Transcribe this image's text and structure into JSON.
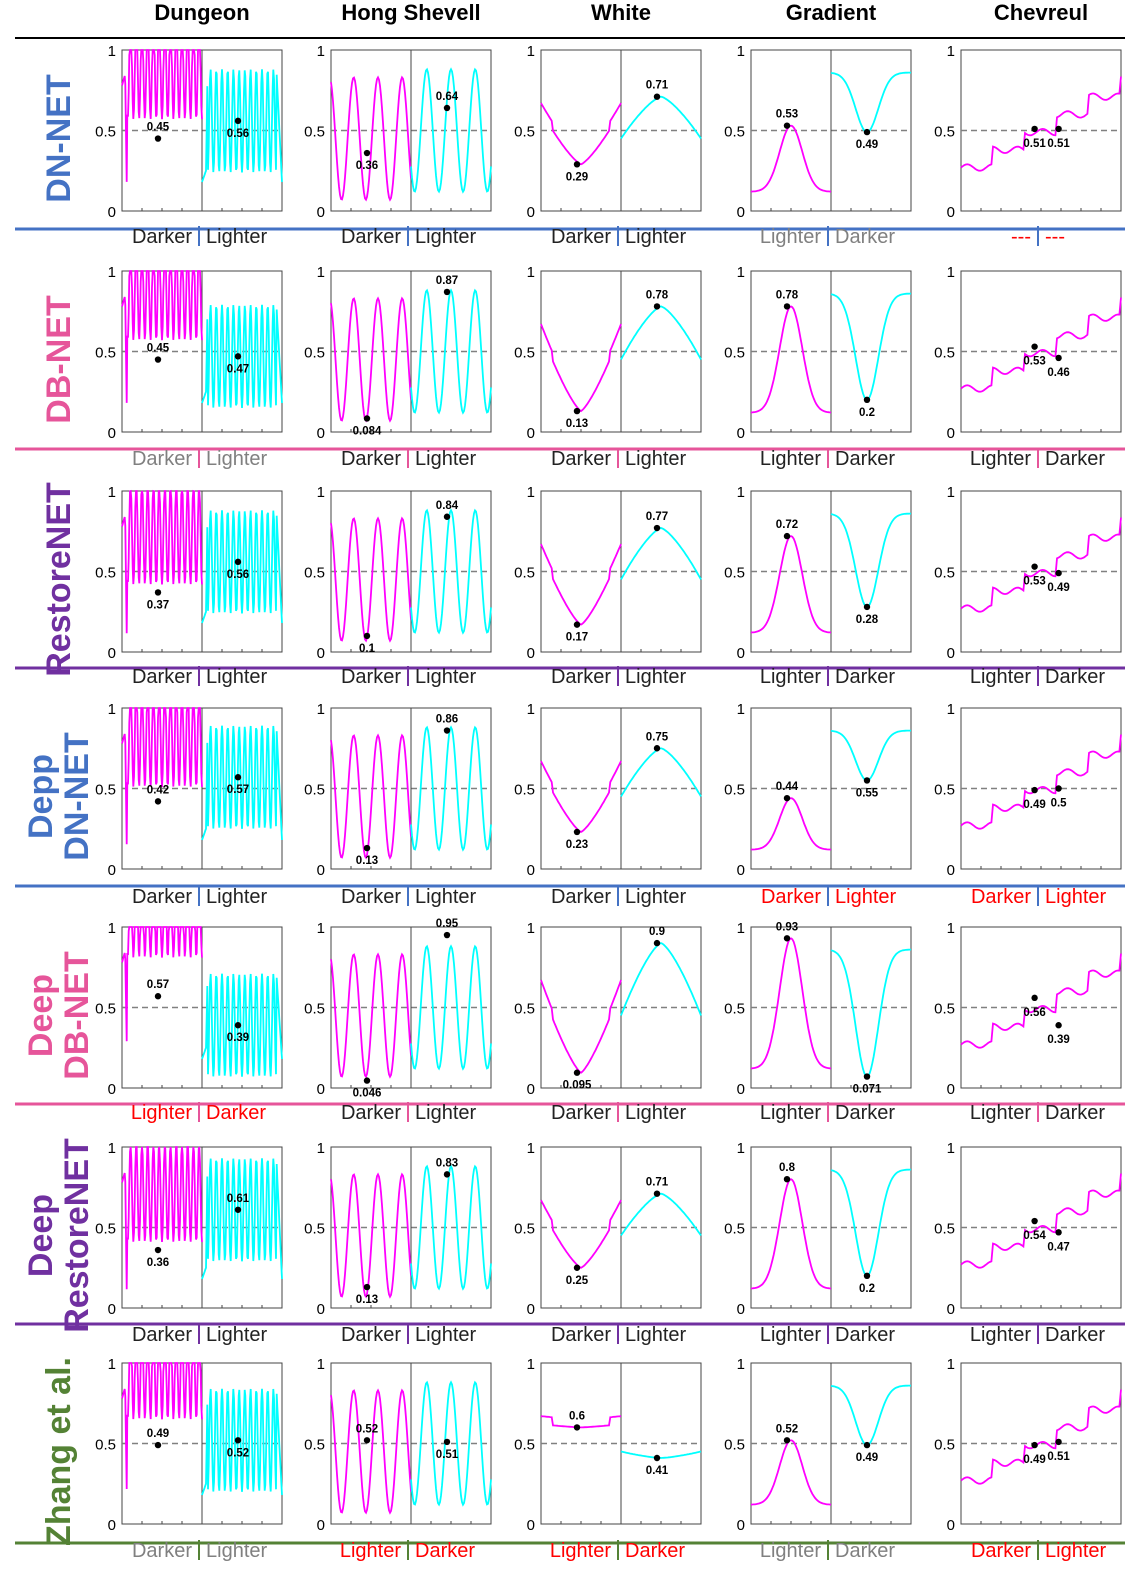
{
  "columns": [
    "Dungeon",
    "Hong Shevell",
    "White",
    "Gradient",
    "Chevreul"
  ],
  "rows": [
    {
      "label_lines": [
        "DN-NET"
      ],
      "color": "#4472c4"
    },
    {
      "label_lines": [
        "DB-NET"
      ],
      "color": "#e6559a"
    },
    {
      "label_lines": [
        "RestoreNET"
      ],
      "color": "#7030a0"
    },
    {
      "label_lines": [
        "Depp",
        "DN-NET"
      ],
      "color": "#4472c4"
    },
    {
      "label_lines": [
        "Deep",
        "DB-NET"
      ],
      "color": "#e6559a"
    },
    {
      "label_lines": [
        "Deep",
        "RestoreNET"
      ],
      "color": "#7030a0"
    },
    {
      "label_lines": [
        "Zhang et al."
      ],
      "color": "#548235"
    }
  ],
  "colors": {
    "magenta": "#ff00ff",
    "cyan": "#00ffff",
    "gray_text": "#808080",
    "red_text": "#ff0000",
    "dark_text": "#222222"
  },
  "chart_data": {
    "type": "line",
    "description_axis": {
      "ylim": [
        0,
        1
      ],
      "yticks": [
        "0",
        "0.5",
        "1"
      ],
      "reference_line": 0.5
    },
    "panels": [
      [
        {
          "a": {
            "v": 0.45,
            "l": "0.45"
          },
          "b": {
            "v": 0.56,
            "l": "0.56"
          },
          "verdict": [
            "Darker",
            "Lighter"
          ],
          "style": "dark"
        },
        {
          "a": {
            "v": 0.36,
            "l": "0.36"
          },
          "b": {
            "v": 0.64,
            "l": "0.64"
          },
          "verdict": [
            "Darker",
            "Lighter"
          ],
          "style": "dark"
        },
        {
          "a": {
            "v": 0.29,
            "l": "0.29"
          },
          "b": {
            "v": 0.71,
            "l": "0.71"
          },
          "verdict": [
            "Darker",
            "Lighter"
          ],
          "style": "dark"
        },
        {
          "a": {
            "v": 0.53,
            "l": "0.53"
          },
          "b": {
            "v": 0.49,
            "l": "0.49"
          },
          "verdict": [
            "Lighter",
            "Darker"
          ],
          "style": "gray"
        },
        {
          "a": {
            "v": 0.51,
            "l": "0.51"
          },
          "b": {
            "v": 0.51,
            "l": "0.51"
          },
          "verdict": [
            "---",
            "---"
          ],
          "style": "red"
        }
      ],
      [
        {
          "a": {
            "v": 0.45,
            "l": "0.45"
          },
          "b": {
            "v": 0.47,
            "l": "0.47"
          },
          "verdict": [
            "Darker",
            "Lighter"
          ],
          "style": "gray"
        },
        {
          "a": {
            "v": 0.084,
            "l": "0.084"
          },
          "b": {
            "v": 0.87,
            "l": "0.87"
          },
          "verdict": [
            "Darker",
            "Lighter"
          ],
          "style": "dark"
        },
        {
          "a": {
            "v": 0.13,
            "l": "0.13"
          },
          "b": {
            "v": 0.78,
            "l": "0.78"
          },
          "verdict": [
            "Darker",
            "Lighter"
          ],
          "style": "dark"
        },
        {
          "a": {
            "v": 0.78,
            "l": "0.78"
          },
          "b": {
            "v": 0.2,
            "l": "0.2"
          },
          "verdict": [
            "Lighter",
            "Darker"
          ],
          "style": "dark"
        },
        {
          "a": {
            "v": 0.53,
            "l": "0.53"
          },
          "b": {
            "v": 0.46,
            "l": "0.46"
          },
          "verdict": [
            "Lighter",
            "Darker"
          ],
          "style": "dark"
        }
      ],
      [
        {
          "a": {
            "v": 0.37,
            "l": "0.37"
          },
          "b": {
            "v": 0.56,
            "l": "0.56"
          },
          "verdict": [
            "Darker",
            "Lighter"
          ],
          "style": "dark"
        },
        {
          "a": {
            "v": 0.1,
            "l": "0.1"
          },
          "b": {
            "v": 0.84,
            "l": "0.84"
          },
          "verdict": [
            "Darker",
            "Lighter"
          ],
          "style": "dark"
        },
        {
          "a": {
            "v": 0.17,
            "l": "0.17"
          },
          "b": {
            "v": 0.77,
            "l": "0.77"
          },
          "verdict": [
            "Darker",
            "Lighter"
          ],
          "style": "dark"
        },
        {
          "a": {
            "v": 0.72,
            "l": "0.72"
          },
          "b": {
            "v": 0.28,
            "l": "0.28"
          },
          "verdict": [
            "Lighter",
            "Darker"
          ],
          "style": "dark"
        },
        {
          "a": {
            "v": 0.53,
            "l": "0.53"
          },
          "b": {
            "v": 0.49,
            "l": "0.49"
          },
          "verdict": [
            "Lighter",
            "Darker"
          ],
          "style": "dark"
        }
      ],
      [
        {
          "a": {
            "v": 0.42,
            "l": "0.42"
          },
          "b": {
            "v": 0.57,
            "l": "0.57"
          },
          "verdict": [
            "Darker",
            "Lighter"
          ],
          "style": "dark"
        },
        {
          "a": {
            "v": 0.13,
            "l": "0.13"
          },
          "b": {
            "v": 0.86,
            "l": "0.86"
          },
          "verdict": [
            "Darker",
            "Lighter"
          ],
          "style": "dark"
        },
        {
          "a": {
            "v": 0.23,
            "l": "0.23"
          },
          "b": {
            "v": 0.75,
            "l": "0.75"
          },
          "verdict": [
            "Darker",
            "Lighter"
          ],
          "style": "dark"
        },
        {
          "a": {
            "v": 0.44,
            "l": "0.44"
          },
          "b": {
            "v": 0.55,
            "l": "0.55"
          },
          "verdict": [
            "Darker",
            "Lighter"
          ],
          "style": "red"
        },
        {
          "a": {
            "v": 0.49,
            "l": "0.49"
          },
          "b": {
            "v": 0.5,
            "l": "0.5"
          },
          "verdict": [
            "Darker",
            "Lighter"
          ],
          "style": "red"
        }
      ],
      [
        {
          "a": {
            "v": 0.57,
            "l": "0.57"
          },
          "b": {
            "v": 0.39,
            "l": "0.39"
          },
          "verdict": [
            "Lighter",
            "Darker"
          ],
          "style": "red"
        },
        {
          "a": {
            "v": 0.046,
            "l": "0.046"
          },
          "b": {
            "v": 0.95,
            "l": "0.95"
          },
          "verdict": [
            "Darker",
            "Lighter"
          ],
          "style": "dark"
        },
        {
          "a": {
            "v": 0.095,
            "l": "0.095"
          },
          "b": {
            "v": 0.9,
            "l": "0.9"
          },
          "verdict": [
            "Darker",
            "Lighter"
          ],
          "style": "dark"
        },
        {
          "a": {
            "v": 0.93,
            "l": "0.93"
          },
          "b": {
            "v": 0.071,
            "l": "0.071"
          },
          "verdict": [
            "Lighter",
            "Darker"
          ],
          "style": "dark"
        },
        {
          "a": {
            "v": 0.56,
            "l": "0.56"
          },
          "b": {
            "v": 0.39,
            "l": "0.39"
          },
          "verdict": [
            "Lighter",
            "Darker"
          ],
          "style": "dark"
        }
      ],
      [
        {
          "a": {
            "v": 0.36,
            "l": "0.36"
          },
          "b": {
            "v": 0.61,
            "l": "0.61"
          },
          "verdict": [
            "Darker",
            "Lighter"
          ],
          "style": "dark"
        },
        {
          "a": {
            "v": 0.13,
            "l": "0.13"
          },
          "b": {
            "v": 0.83,
            "l": "0.83"
          },
          "verdict": [
            "Darker",
            "Lighter"
          ],
          "style": "dark"
        },
        {
          "a": {
            "v": 0.25,
            "l": "0.25"
          },
          "b": {
            "v": 0.71,
            "l": "0.71"
          },
          "verdict": [
            "Darker",
            "Lighter"
          ],
          "style": "dark"
        },
        {
          "a": {
            "v": 0.8,
            "l": "0.8"
          },
          "b": {
            "v": 0.2,
            "l": "0.2"
          },
          "verdict": [
            "Lighter",
            "Darker"
          ],
          "style": "dark"
        },
        {
          "a": {
            "v": 0.54,
            "l": "0.54"
          },
          "b": {
            "v": 0.47,
            "l": "0.47"
          },
          "verdict": [
            "Lighter",
            "Darker"
          ],
          "style": "dark"
        }
      ],
      [
        {
          "a": {
            "v": 0.49,
            "l": "0.49"
          },
          "b": {
            "v": 0.52,
            "l": "0.52"
          },
          "verdict": [
            "Darker",
            "Lighter"
          ],
          "style": "gray"
        },
        {
          "a": {
            "v": 0.52,
            "l": "0.52"
          },
          "b": {
            "v": 0.51,
            "l": "0.51"
          },
          "verdict": [
            "Lighter",
            "Darker"
          ],
          "style": "red"
        },
        {
          "a": {
            "v": 0.6,
            "l": "0.6"
          },
          "b": {
            "v": 0.41,
            "l": "0.41"
          },
          "verdict": [
            "Lighter",
            "Darker"
          ],
          "style": "red"
        },
        {
          "a": {
            "v": 0.52,
            "l": "0.52"
          },
          "b": {
            "v": 0.49,
            "l": "0.49"
          },
          "verdict": [
            "Lighter",
            "Darker"
          ],
          "style": "gray"
        },
        {
          "a": {
            "v": 0.49,
            "l": "0.49"
          },
          "b": {
            "v": 0.51,
            "l": "0.51"
          },
          "verdict": [
            "Darker",
            "Lighter"
          ],
          "style": "red"
        }
      ]
    ]
  }
}
